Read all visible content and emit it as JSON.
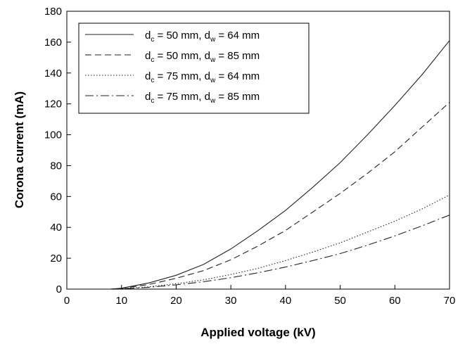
{
  "chart_data": {
    "type": "line",
    "title": "",
    "xlabel": "Applied voltage (kV)",
    "ylabel": "Corona current (mA)",
    "xlim": [
      0,
      70
    ],
    "ylim": [
      0,
      180
    ],
    "xticks": [
      0,
      10,
      20,
      30,
      40,
      50,
      60,
      70
    ],
    "yticks": [
      0,
      20,
      40,
      60,
      80,
      100,
      120,
      140,
      160,
      180
    ],
    "grid": false,
    "legend_position": "top-left",
    "series": [
      {
        "name": "d_c = 50 mm, d_w = 64 mm",
        "label_parts": [
          "d",
          "c",
          " = 50 mm, d",
          "w",
          " = 64 mm"
        ],
        "style": "solid",
        "x": [
          8,
          10,
          15,
          20,
          25,
          30,
          35,
          40,
          45,
          50,
          55,
          60,
          65,
          70
        ],
        "y": [
          0,
          0.6,
          4,
          9,
          16,
          26,
          38,
          51,
          66,
          82,
          100,
          119,
          139,
          161
        ]
      },
      {
        "name": "d_c = 50 mm, d_w = 85 mm",
        "label_parts": [
          "d",
          "c",
          " = 50 mm, d",
          "w",
          " = 85 mm"
        ],
        "style": "dashed",
        "x": [
          8,
          10,
          15,
          20,
          25,
          30,
          35,
          40,
          45,
          50,
          55,
          60,
          65,
          70
        ],
        "y": [
          0,
          0.5,
          3,
          7,
          12,
          19,
          28,
          38,
          50,
          62,
          75,
          89,
          105,
          121
        ]
      },
      {
        "name": "d_c = 75 mm, d_w = 64 mm",
        "label_parts": [
          "d",
          "c",
          " = 75 mm, d",
          "w",
          " = 64 mm"
        ],
        "style": "dotted",
        "x": [
          8,
          10,
          15,
          20,
          25,
          30,
          35,
          40,
          45,
          50,
          55,
          60,
          65,
          70
        ],
        "y": [
          0,
          0.3,
          1.5,
          3.5,
          6,
          9.5,
          13.5,
          18.5,
          24,
          30,
          37,
          44,
          52,
          61
        ]
      },
      {
        "name": "d_c = 75 mm, d_w = 85 mm",
        "label_parts": [
          "d",
          "c",
          " = 75 mm, d",
          "w",
          " = 85 mm"
        ],
        "style": "dashdot",
        "x": [
          8,
          10,
          15,
          20,
          25,
          30,
          35,
          40,
          45,
          50,
          55,
          60,
          65,
          70
        ],
        "y": [
          0,
          0.2,
          1.2,
          2.8,
          4.8,
          7.4,
          10.6,
          14.3,
          18.5,
          23,
          28.5,
          34.5,
          41,
          48
        ]
      }
    ]
  }
}
